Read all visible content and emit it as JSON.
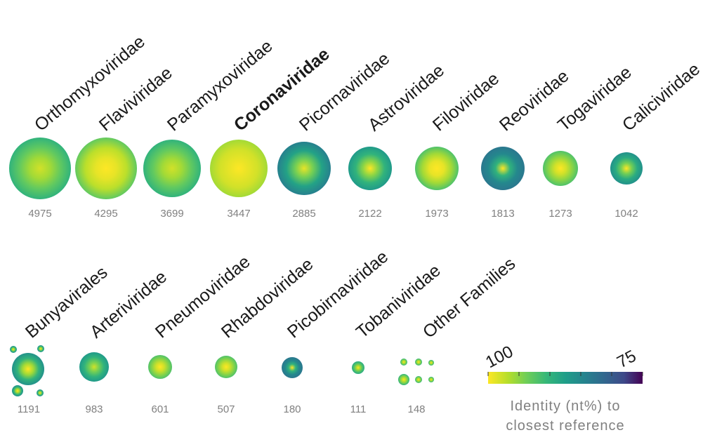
{
  "chart_data": {
    "type": "bubble",
    "description_units": "number of sequences per viral family; bubble color = identity (nt%) to closest reference",
    "rows": [
      {
        "families": [
          {
            "name": "Orthomyxoviridae",
            "count": "4975",
            "bold": false,
            "identity_gradient": [
              98,
              96,
              93,
              90
            ]
          },
          {
            "name": "Flaviviridae",
            "count": "4295",
            "bold": false,
            "identity_gradient": [
              100,
              99,
              97,
              93
            ]
          },
          {
            "name": "Paramyxoviridae",
            "count": "3699",
            "bold": false,
            "identity_gradient": [
              98,
              96,
              93,
              90
            ]
          },
          {
            "name": "Coronaviridae",
            "count": "3447",
            "bold": true,
            "identity_gradient": [
              100,
              99,
              98,
              96
            ]
          },
          {
            "name": "Picornaviridae",
            "count": "2885",
            "bold": false,
            "identity_gradient": [
              99,
              94,
              88,
              84
            ]
          },
          {
            "name": "Astroviridae",
            "count": "2122",
            "bold": false,
            "identity_gradient": [
              100,
              95,
              90,
              87
            ]
          },
          {
            "name": "Filoviridae",
            "count": "1973",
            "bold": false,
            "identity_gradient": [
              100,
              99,
              96,
              92
            ]
          },
          {
            "name": "Reoviridae",
            "count": "1813",
            "bold": false,
            "identity_gradient": [
              100,
              90,
              85,
              83
            ]
          },
          {
            "name": "Togaviridae",
            "count": "1273",
            "bold": false,
            "identity_gradient": [
              100,
              98,
              95,
              92
            ]
          },
          {
            "name": "Caliciviridae",
            "count": "1042",
            "bold": false,
            "identity_gradient": [
              100,
              94,
              89,
              86
            ]
          }
        ]
      },
      {
        "families": [
          {
            "name": "Bunyavirales",
            "count": "1191",
            "bold": false,
            "identity_gradient": [
              100,
              96,
              90,
              86
            ]
          },
          {
            "name": "Arteriviridae",
            "count": "983",
            "bold": false,
            "identity_gradient": [
              98,
              94,
              90,
              87
            ]
          },
          {
            "name": "Pneumoviridae",
            "count": "601",
            "bold": false,
            "identity_gradient": [
              100,
              98,
              95,
              92
            ]
          },
          {
            "name": "Rhabdoviridae",
            "count": "507",
            "bold": false,
            "identity_gradient": [
              100,
              98,
              95,
              92
            ]
          },
          {
            "name": "Picobirnaviridae",
            "count": "180",
            "bold": false,
            "identity_gradient": [
              100,
              90,
              85,
              83
            ]
          },
          {
            "name": "Tobaniviridae",
            "count": "111",
            "bold": false,
            "identity_gradient": [
              100,
              96,
              92,
              89
            ]
          },
          {
            "name": "Other Families",
            "count": "148",
            "bold": false,
            "identity_gradient": [
              100,
              97,
              94,
              90
            ]
          }
        ]
      }
    ],
    "colorbar": {
      "min_label": "100",
      "max_label": "75",
      "range": [
        100,
        75
      ],
      "colormap": "viridis (reversed)",
      "title_line1": "Identity (nt%) to",
      "title_line2": "closest reference"
    }
  }
}
